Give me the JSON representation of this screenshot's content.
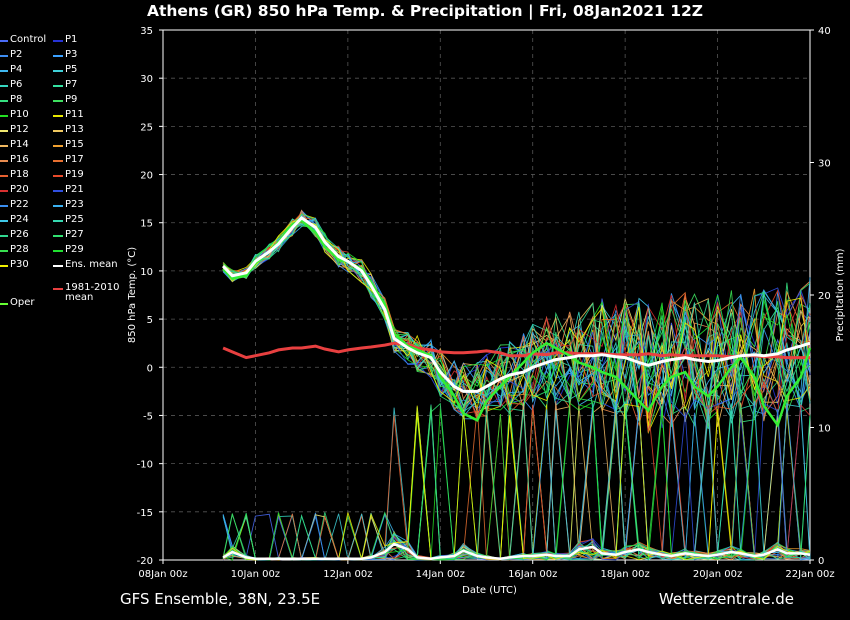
{
  "title": "Athens  (GR)  850 hPa Temp. & Precipitation | Fri, 08Jan2021 12Z",
  "footer": {
    "left": "GFS Ensemble, 38N, 23.5E",
    "right": "Wetterzentrale.de"
  },
  "legend": [
    {
      "label": "Control",
      "color": "#4a6cf7"
    },
    {
      "label": "P1",
      "color": "#2633d6"
    },
    {
      "label": "P2",
      "color": "#3e8df2"
    },
    {
      "label": "P3",
      "color": "#3aa0ff"
    },
    {
      "label": "P4",
      "color": "#3fb8f0"
    },
    {
      "label": "P5",
      "color": "#3fd0d8"
    },
    {
      "label": "P6",
      "color": "#35d6c0"
    },
    {
      "label": "P7",
      "color": "#33e0a0"
    },
    {
      "label": "P8",
      "color": "#35e080"
    },
    {
      "label": "P9",
      "color": "#3ee060"
    },
    {
      "label": "P10",
      "color": "#22e022"
    },
    {
      "label": "P11",
      "color": "#e8e800"
    },
    {
      "label": "P12",
      "color": "#f0e870"
    },
    {
      "label": "P13",
      "color": "#f0c860"
    },
    {
      "label": "P14",
      "color": "#f0b860"
    },
    {
      "label": "P15",
      "color": "#f0a030"
    },
    {
      "label": "P16",
      "color": "#e88c50"
    },
    {
      "label": "P17",
      "color": "#e87030"
    },
    {
      "label": "P18",
      "color": "#e86030"
    },
    {
      "label": "P19",
      "color": "#e84a2a"
    },
    {
      "label": "P20",
      "color": "#d83030"
    },
    {
      "label": "P21",
      "color": "#3050e0"
    },
    {
      "label": "P22",
      "color": "#3a8ef0"
    },
    {
      "label": "P23",
      "color": "#3ab0f0"
    },
    {
      "label": "P24",
      "color": "#3fc8e8"
    },
    {
      "label": "P25",
      "color": "#35d8b0"
    },
    {
      "label": "P26",
      "color": "#30d890"
    },
    {
      "label": "P27",
      "color": "#30e070"
    },
    {
      "label": "P28",
      "color": "#38e050"
    },
    {
      "label": "P29",
      "color": "#20e030"
    },
    {
      "label": "P30",
      "color": "#f0f000"
    },
    {
      "label": "Ens. mean",
      "color": "#ffffff"
    },
    {
      "label": "1981-2010",
      "label2": "mean",
      "color": "#e84040"
    },
    {
      "label": "Oper",
      "color": "#66ff33"
    }
  ],
  "chart_data": {
    "type": "line",
    "title": "Athens  (GR)  850 hPa Temp. & Precipitation | Fri, 08Jan2021 12Z",
    "xlabel": "Date (UTC)",
    "ylabel": "850 hPa Temp. (°C)",
    "ylabel_right": "Precipitation (mm)",
    "x_ticks": [
      "08Jan 00z",
      "10Jan 00z",
      "12Jan 00z",
      "14Jan 00z",
      "16Jan 00z",
      "18Jan 00z",
      "20Jan 00z",
      "22Jan 00z"
    ],
    "x_range_days": [
      0,
      14
    ],
    "ylim": [
      -20,
      35
    ],
    "y_ticks": [
      -20,
      -15,
      -10,
      -5,
      0,
      5,
      10,
      15,
      20,
      25,
      30,
      35
    ],
    "ylim_right": [
      0,
      40
    ],
    "y_ticks_right": [
      0,
      10,
      20,
      30,
      40
    ],
    "grid": true,
    "x_days": [
      1.3,
      1.5,
      1.8,
      2,
      2.3,
      2.5,
      2.8,
      3,
      3.3,
      3.5,
      3.8,
      4,
      4.3,
      4.5,
      4.8,
      5,
      5.3,
      5.5,
      5.8,
      6,
      6.3,
      6.5,
      6.8,
      7,
      7.3,
      7.5,
      7.8,
      8,
      8.3,
      8.5,
      8.8,
      9,
      9.3,
      9.5,
      9.8,
      10,
      10.3,
      10.5,
      10.8,
      11,
      11.3,
      11.5,
      11.8,
      12,
      12.3,
      12.5,
      12.8,
      13,
      13.3,
      13.5,
      13.8,
      14
    ],
    "ens_mean": [
      10.5,
      9.5,
      9.8,
      11,
      12,
      12.8,
      14.5,
      15.5,
      14.5,
      13,
      11.5,
      11,
      10,
      8.5,
      6,
      3,
      2,
      1.5,
      1,
      -0.5,
      -2,
      -2.5,
      -2.5,
      -2,
      -1.2,
      -0.8,
      -0.5,
      0,
      0.5,
      0.8,
      1,
      1.2,
      1.2,
      1.3,
      1.1,
      1,
      0.5,
      0.2,
      0.6,
      0.8,
      1,
      0.8,
      0.6,
      0.7,
      1,
      1.2,
      1.3,
      1.2,
      1.4,
      1.8,
      2.2,
      2.5
    ],
    "climate_mean": [
      2,
      1.6,
      1,
      1.2,
      1.5,
      1.8,
      2,
      2,
      2.2,
      1.9,
      1.6,
      1.8,
      2,
      2.1,
      2.3,
      2.5,
      2.4,
      2,
      1.8,
      1.6,
      1.5,
      1.5,
      1.6,
      1.7,
      1.5,
      1.2,
      1.2,
      1.4,
      1.3,
      1.5,
      1.5,
      1.4,
      1.4,
      1.4,
      1.3,
      1.3,
      1.3,
      1.4,
      1.2,
      1.3,
      1.2,
      1.2,
      1.2,
      1.2,
      1.1,
      1.2,
      1.2,
      1.1,
      1.1,
      1.0,
      1.0,
      1.0
    ],
    "oper": [
      10.2,
      9.2,
      9.5,
      10.8,
      12,
      13,
      14.8,
      15.2,
      14,
      12.5,
      11.2,
      11,
      10.2,
      8.8,
      6.5,
      3.5,
      2.2,
      1.8,
      1.2,
      -1,
      -3,
      -4.8,
      -5.5,
      -3.5,
      -2,
      -1,
      0.5,
      1.5,
      2.5,
      2,
      1.2,
      0.5,
      0,
      -0.5,
      -1,
      -2,
      -3.5,
      -4.5,
      -2,
      -1,
      -0.5,
      -2,
      -3,
      -2,
      0,
      1,
      -1,
      -4,
      -6,
      -3,
      -1,
      2
    ],
    "ens_mean_precip": [
      0.2,
      0.6,
      0.2,
      0.1,
      0.1,
      0.1,
      0.1,
      0.1,
      0.1,
      0.1,
      0.1,
      0.1,
      0.1,
      0.2,
      0.6,
      1.2,
      0.8,
      0.2,
      0.1,
      0.2,
      0.3,
      0.7,
      0.3,
      0.2,
      0.1,
      0.2,
      0.3,
      0.3,
      0.4,
      0.3,
      0.3,
      0.8,
      1,
      0.5,
      0.4,
      0.6,
      0.8,
      0.6,
      0.4,
      0.3,
      0.5,
      0.4,
      0.3,
      0.4,
      0.6,
      0.5,
      0.3,
      0.4,
      0.8,
      0.5,
      0.5,
      0.4
    ]
  }
}
